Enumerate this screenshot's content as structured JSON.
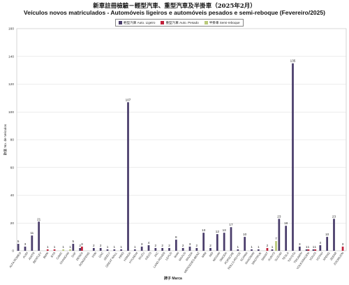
{
  "chart_data": {
    "type": "bar",
    "title": "新車註冊檢驗－輕型汽車、重型汽車及半掛車（2025年2月）",
    "subtitle": "Veículos novos matriculados - Automóveis ligeiros e automóveis pesados e semi-reboque (Fevereiro/2025)",
    "xlabel": "牌子 Marca",
    "ylabel": "數量 No. de Veículos",
    "ylim": [
      0,
      160
    ],
    "yticks": [
      0,
      20,
      40,
      60,
      80,
      100,
      120,
      140,
      160
    ],
    "grid": true,
    "legend_position": "top-center",
    "categories": [
      "ALFA ROMEO",
      "AUDI",
      "AVATR",
      "BENTLEY",
      "BMW",
      "BYD",
      "CAMC",
      "CHANGAN",
      "DAF",
      "DENZA",
      "DONGFENG",
      "FAW",
      "GAC",
      "GEELY",
      "GREAT WALL",
      "HINO",
      "HONDA",
      "HYUNDAI",
      "ISUZU",
      "IVECO",
      "JAC",
      "LAND ROVER",
      "LEXUS",
      "MAN",
      "MAXUS",
      "MAZDA",
      "MERCEDES-BENZ",
      "MINI",
      "NIO",
      "NISSAN",
      "OMODA",
      "PORSCHE",
      "ROLLS-ROYCE",
      "SCANIA",
      "SHACMAN",
      "SINOTRUK",
      "SMART",
      "SUNYO",
      "SUZUKI",
      "TESLA",
      "TOYOTA",
      "TRIUMPH",
      "VOLKSWAGEN",
      "VOLVO",
      "VOYAH",
      "XPENG",
      "ZEEKR",
      "ZOOMLION"
    ],
    "series": [
      {
        "name": "輕型汽車 Auto. Ligeiro",
        "color": "#4a3d6b",
        "values": [
          5,
          3,
          11,
          21,
          0,
          0,
          0,
          0,
          5,
          2,
          0,
          2,
          2,
          1,
          1,
          1,
          107,
          1,
          3,
          4,
          2,
          2,
          2,
          8,
          2,
          3,
          2,
          13,
          2,
          12,
          13,
          17,
          1,
          10,
          1,
          1,
          0,
          1,
          23,
          18,
          135,
          3,
          1,
          1,
          4,
          10,
          23,
          0
        ]
      },
      {
        "name": "重型汽車 Auto. Pesado",
        "color": "#c0203a",
        "values": [
          0,
          0,
          0,
          0,
          1,
          1,
          0,
          0,
          0,
          3,
          0,
          0,
          0,
          0,
          0,
          0,
          0,
          0,
          0,
          0,
          0,
          0,
          0,
          0,
          0,
          0,
          0,
          0,
          0,
          0,
          0,
          0,
          0,
          0,
          0,
          0,
          2,
          0,
          0,
          0,
          0,
          0,
          1,
          1,
          0,
          0,
          0,
          3
        ]
      },
      {
        "name": "半掛車 Semi-reboque",
        "color": "#b9c97a",
        "values": [
          0,
          0,
          0,
          0,
          0,
          0,
          1,
          1,
          0,
          0,
          0,
          0,
          0,
          0,
          0,
          0,
          0,
          0,
          0,
          0,
          0,
          0,
          0,
          0,
          0,
          0,
          0,
          0,
          0,
          0,
          0,
          0,
          0,
          0,
          0,
          0,
          0,
          7,
          0,
          0,
          0,
          0,
          0,
          0,
          0,
          0,
          0,
          0
        ]
      }
    ]
  }
}
